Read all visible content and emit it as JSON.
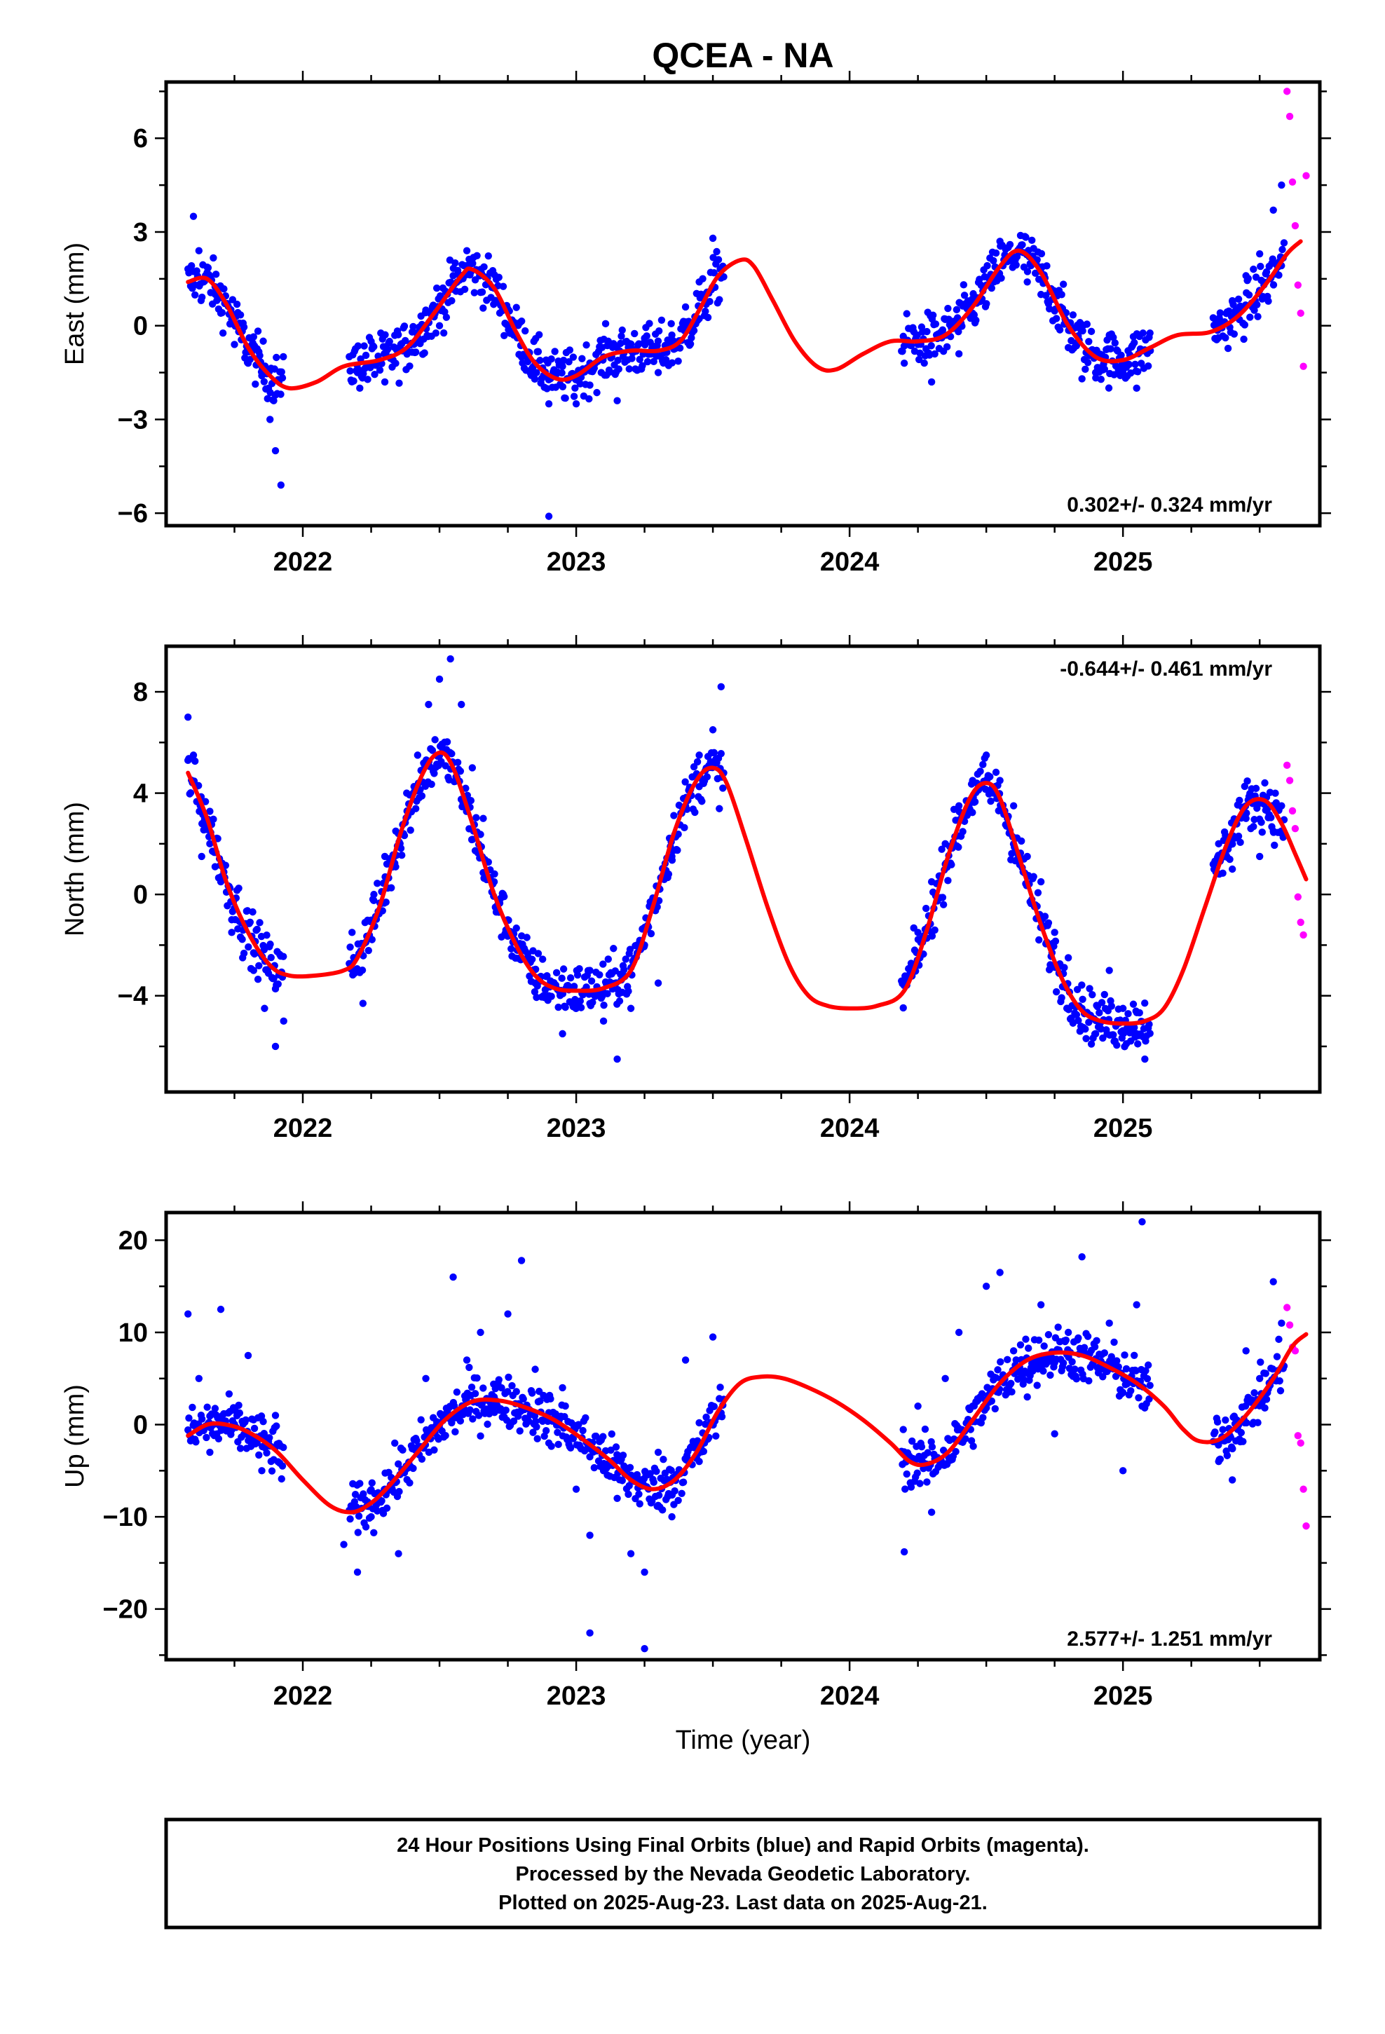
{
  "chart_data": {
    "title": "QCEA - NA",
    "xlabel": "Time (year)",
    "xlim": [
      2021.5,
      2025.72
    ],
    "x_ticks": [
      "2022",
      "2023",
      "2024",
      "2025"
    ],
    "colors": {
      "final_orbits": "#0000ff",
      "rapid_orbits": "#ff00ff",
      "model_fit": "#ff0000"
    },
    "panels": [
      {
        "type": "scatter",
        "name": "east",
        "ylabel": "East (mm)",
        "ylim": [
          -6.4,
          7.8
        ],
        "y_ticks": [
          "6",
          "3",
          "0",
          "−3",
          "−6"
        ],
        "y_tick_values": [
          6,
          3,
          0,
          -3,
          -6
        ],
        "rate": "0.302+/- 0.324 mm/yr",
        "rate_pos": "bottom-right",
        "model_fit": {
          "x": [
            2021.58,
            2021.65,
            2021.72,
            2021.8,
            2021.88,
            2021.95,
            2022.05,
            2022.15,
            2022.28,
            2022.38,
            2022.48,
            2022.58,
            2022.62,
            2022.7,
            2022.78,
            2022.85,
            2022.93,
            2023.0,
            2023.1,
            2023.2,
            2023.3,
            2023.38,
            2023.45,
            2023.52,
            2023.6,
            2023.65,
            2023.72,
            2023.8,
            2023.88,
            2023.95,
            2024.05,
            2024.15,
            2024.25,
            2024.35,
            2024.45,
            2024.55,
            2024.62,
            2024.7,
            2024.8,
            2024.9,
            2025.0,
            2025.1,
            2025.2,
            2025.32,
            2025.42,
            2025.52,
            2025.6,
            2025.65
          ],
          "y": [
            1.4,
            1.5,
            0.7,
            -0.7,
            -1.6,
            -2.0,
            -1.8,
            -1.3,
            -1.1,
            -0.7,
            0.4,
            1.6,
            1.8,
            1.2,
            -0.2,
            -1.2,
            -1.7,
            -1.6,
            -1.0,
            -0.8,
            -0.8,
            -0.5,
            0.5,
            1.6,
            2.1,
            1.9,
            0.8,
            -0.5,
            -1.3,
            -1.4,
            -0.9,
            -0.5,
            -0.5,
            -0.3,
            0.6,
            1.9,
            2.4,
            1.7,
            0.0,
            -1.0,
            -1.1,
            -0.7,
            -0.3,
            -0.2,
            0.3,
            1.3,
            2.3,
            2.7
          ]
        },
        "final_samples": {
          "x": [
            2021.6,
            2021.62,
            2021.65,
            2021.68,
            2021.7,
            2021.75,
            2021.8,
            2021.85,
            2021.88,
            2021.9,
            2021.92,
            2022.2,
            2022.25,
            2022.3,
            2022.4,
            2022.45,
            2022.5,
            2022.55,
            2022.6,
            2022.65,
            2022.7,
            2022.75,
            2022.8,
            2022.85,
            2022.9,
            2022.95,
            2023.0,
            2023.05,
            2023.1,
            2023.15,
            2023.2,
            2023.25,
            2023.3,
            2023.35,
            2023.4,
            2023.45,
            2023.5,
            2024.2,
            2024.25,
            2024.3,
            2024.35,
            2024.4,
            2024.45,
            2024.5,
            2024.55,
            2024.6,
            2024.65,
            2024.7,
            2024.75,
            2024.8,
            2024.85,
            2024.9,
            2024.95,
            2025.0,
            2025.05,
            2025.1,
            2025.35,
            2025.4,
            2025.45,
            2025.5,
            2025.55,
            2025.58
          ],
          "y": [
            3.5,
            2.4,
            1.7,
            1.0,
            0.4,
            -0.6,
            -1.2,
            -1.6,
            -3.0,
            -4.0,
            -5.1,
            -1.5,
            -0.5,
            -1.8,
            -0.2,
            0.5,
            0.0,
            1.6,
            2.4,
            1.8,
            1.2,
            0.0,
            -1.0,
            -1.2,
            -2.5,
            -1.3,
            -2.5,
            -1.9,
            -1.0,
            -2.4,
            -0.8,
            -0.4,
            -1.5,
            -0.3,
            0.6,
            1.4,
            2.8,
            -1.2,
            -0.6,
            -1.8,
            0.2,
            -0.9,
            0.4,
            1.3,
            2.7,
            2.0,
            1.4,
            1.0,
            0.5,
            -0.7,
            -1.7,
            -1.5,
            -0.3,
            -1.5,
            -2.0,
            -0.8,
            0.0,
            0.8,
            1.6,
            2.3,
            3.7,
            4.5
          ]
        },
        "outliers": {
          "x": [
            2022.9
          ],
          "y": [
            -6.1
          ]
        },
        "rapid_samples": {
          "x": [
            2025.6,
            2025.61,
            2025.62,
            2025.63,
            2025.64,
            2025.65,
            2025.66,
            2025.67
          ],
          "y": [
            7.5,
            6.7,
            4.6,
            3.2,
            1.3,
            0.4,
            -1.3,
            4.8
          ]
        }
      },
      {
        "type": "scatter",
        "name": "north",
        "ylabel": "North (mm)",
        "ylim": [
          -7.8,
          9.8
        ],
        "y_ticks": [
          "8",
          "4",
          "0",
          "−4"
        ],
        "y_tick_values": [
          8,
          4,
          0,
          -4
        ],
        "rate": "-0.644+/- 0.461 mm/yr",
        "rate_pos": "top-right",
        "model_fit": {
          "x": [
            2021.58,
            2021.65,
            2021.72,
            2021.8,
            2021.88,
            2021.95,
            2022.05,
            2022.15,
            2022.2,
            2022.28,
            2022.36,
            2022.44,
            2022.5,
            2022.55,
            2022.62,
            2022.7,
            2022.78,
            2022.85,
            2022.92,
            2023.0,
            2023.1,
            2023.2,
            2023.28,
            2023.36,
            2023.44,
            2023.5,
            2023.55,
            2023.62,
            2023.7,
            2023.78,
            2023.85,
            2023.92,
            2024.0,
            2024.1,
            2024.2,
            2024.28,
            2024.36,
            2024.44,
            2024.5,
            2024.55,
            2024.62,
            2024.7,
            2024.78,
            2024.85,
            2024.92,
            2025.0,
            2025.08,
            2025.15,
            2025.22,
            2025.3,
            2025.38,
            2025.45,
            2025.52,
            2025.58,
            2025.63,
            2025.67
          ],
          "y": [
            4.8,
            3.0,
            0.5,
            -1.5,
            -2.8,
            -3.2,
            -3.2,
            -3.0,
            -2.5,
            -0.5,
            2.5,
            4.8,
            5.6,
            5.0,
            2.8,
            0.0,
            -2.0,
            -3.2,
            -3.7,
            -3.8,
            -3.7,
            -3.0,
            -0.5,
            2.5,
            4.5,
            5.0,
            4.4,
            2.2,
            -0.5,
            -2.8,
            -4.0,
            -4.4,
            -4.5,
            -4.4,
            -3.8,
            -1.5,
            1.5,
            3.8,
            4.4,
            3.8,
            1.5,
            -1.2,
            -3.4,
            -4.6,
            -5.0,
            -5.1,
            -5.0,
            -4.5,
            -3.0,
            -0.5,
            2.0,
            3.5,
            3.7,
            2.8,
            1.6,
            0.6
          ]
        },
        "final_samples": {
          "x": [
            2021.58,
            2021.6,
            2021.63,
            2021.66,
            2021.7,
            2021.74,
            2021.78,
            2021.82,
            2021.86,
            2021.9,
            2021.93,
            2022.18,
            2022.22,
            2022.26,
            2022.3,
            2022.34,
            2022.38,
            2022.42,
            2022.46,
            2022.5,
            2022.54,
            2022.58,
            2022.62,
            2022.66,
            2022.7,
            2022.75,
            2022.8,
            2022.85,
            2022.9,
            2022.95,
            2023.0,
            2023.05,
            2023.1,
            2023.15,
            2023.2,
            2023.25,
            2023.3,
            2023.35,
            2023.4,
            2023.45,
            2023.5,
            2023.53,
            2024.2,
            2024.25,
            2024.3,
            2024.35,
            2024.4,
            2024.45,
            2024.5,
            2024.55,
            2024.6,
            2024.65,
            2024.7,
            2024.75,
            2024.8,
            2024.85,
            2024.9,
            2024.95,
            2025.0,
            2025.05,
            2025.08,
            2025.35,
            2025.4,
            2025.45,
            2025.5,
            2025.55,
            2025.58
          ],
          "y": [
            7.0,
            5.5,
            1.5,
            2.0,
            0.5,
            -1.5,
            -2.5,
            -3.0,
            -4.5,
            -6.0,
            -5.0,
            -1.5,
            -4.3,
            0.0,
            1.5,
            2.5,
            4.0,
            5.5,
            7.5,
            8.5,
            9.3,
            7.5,
            5.0,
            3.0,
            0.5,
            -1.0,
            -2.5,
            -3.5,
            -4.0,
            -5.5,
            -4.5,
            -3.0,
            -5.0,
            -6.5,
            -4.5,
            -2.0,
            -3.5,
            1.5,
            3.5,
            5.5,
            6.5,
            8.2,
            -3.5,
            -1.5,
            0.5,
            2.0,
            3.5,
            4.5,
            5.5,
            4.5,
            3.5,
            1.5,
            0.5,
            -1.5,
            -2.5,
            -4.5,
            -5.5,
            -3.0,
            -4.5,
            -5.5,
            -6.5,
            2.0,
            1.0,
            3.0,
            1.5,
            2.5,
            3.5
          ],
          "note_max": 9.5
        },
        "rapid_samples": {
          "x": [
            2025.6,
            2025.61,
            2025.62,
            2025.63,
            2025.64,
            2025.65,
            2025.66
          ],
          "y": [
            5.1,
            4.5,
            3.3,
            2.6,
            -0.1,
            -1.1,
            -1.6
          ]
        }
      },
      {
        "type": "scatter",
        "name": "up",
        "ylabel": "Up (mm)",
        "xlabel": "Time (year)",
        "ylim": [
          -25.5,
          23
        ],
        "y_ticks": [
          "20",
          "10",
          "0",
          "−10",
          "−20"
        ],
        "y_tick_values": [
          20,
          10,
          0,
          -10,
          -20
        ],
        "rate": "2.577+/- 1.251 mm/yr",
        "rate_pos": "bottom-right",
        "model_fit": {
          "x": [
            2021.58,
            2021.65,
            2021.72,
            2021.8,
            2021.9,
            2022.0,
            2022.1,
            2022.18,
            2022.25,
            2022.32,
            2022.42,
            2022.52,
            2022.62,
            2022.72,
            2022.82,
            2022.92,
            2023.02,
            2023.12,
            2023.2,
            2023.28,
            2023.36,
            2023.44,
            2023.52,
            2023.6,
            2023.68,
            2023.76,
            2023.85,
            2023.95,
            2024.05,
            2024.15,
            2024.22,
            2024.28,
            2024.36,
            2024.45,
            2024.55,
            2024.65,
            2024.75,
            2024.85,
            2024.95,
            2025.05,
            2025.15,
            2025.22,
            2025.28,
            2025.36,
            2025.45,
            2025.55,
            2025.62,
            2025.67
          ],
          "y": [
            -1.2,
            0.0,
            0.0,
            -0.8,
            -2.8,
            -6.0,
            -8.8,
            -9.5,
            -8.5,
            -6.5,
            -3.0,
            0.5,
            2.5,
            2.6,
            1.8,
            0.5,
            -1.5,
            -3.8,
            -6.0,
            -7.0,
            -6.0,
            -3.0,
            1.5,
            4.5,
            5.2,
            5.0,
            4.0,
            2.5,
            0.5,
            -2.0,
            -4.0,
            -4.3,
            -3.0,
            0.5,
            4.5,
            7.0,
            7.8,
            7.5,
            6.2,
            4.5,
            2.0,
            -0.5,
            -1.8,
            -1.5,
            1.0,
            5.0,
            8.5,
            9.8
          ]
        },
        "final_samples": {
          "x": [
            2021.58,
            2021.62,
            2021.66,
            2021.7,
            2021.75,
            2021.8,
            2021.85,
            2021.9,
            2022.15,
            2022.2,
            2022.25,
            2022.3,
            2022.35,
            2022.45,
            2022.5,
            2022.55,
            2022.6,
            2022.65,
            2022.7,
            2022.75,
            2022.8,
            2022.85,
            2022.9,
            2022.95,
            2023.0,
            2023.05,
            2023.1,
            2023.15,
            2023.2,
            2023.25,
            2023.3,
            2023.35,
            2023.4,
            2023.45,
            2023.5,
            2024.2,
            2024.25,
            2024.3,
            2024.35,
            2024.4,
            2024.45,
            2024.5,
            2024.55,
            2024.6,
            2024.65,
            2024.7,
            2024.75,
            2024.8,
            2024.85,
            2024.9,
            2024.95,
            2025.0,
            2025.05,
            2025.35,
            2025.4,
            2025.45,
            2025.5,
            2025.55,
            2025.58
          ],
          "y": [
            12.0,
            5.0,
            -3.0,
            12.5,
            0.0,
            7.5,
            -5.0,
            1.0,
            -13.0,
            -16.0,
            -10.0,
            -7.0,
            -14.0,
            5.0,
            0.0,
            16.0,
            7.0,
            10.0,
            3.0,
            12.0,
            17.8,
            6.0,
            -2.0,
            4.0,
            -7.0,
            -12.0,
            -5.0,
            -8.0,
            -14.0,
            -16.0,
            -3.0,
            -10.0,
            7.0,
            -4.0,
            9.5,
            -13.8,
            2.0,
            -9.5,
            5.0,
            10.0,
            2.0,
            15.0,
            16.5,
            8.0,
            3.0,
            13.0,
            -1.0,
            10.0,
            18.2,
            7.0,
            11.0,
            -5.0,
            13.0,
            -4.0,
            -6.0,
            8.0,
            5.0,
            15.5,
            11.0
          ],
          "note_max": 22
        },
        "outliers": {
          "x": [
            2023.05,
            2023.25,
            2025.07
          ],
          "y": [
            -22.6,
            -24.3,
            22.0
          ]
        },
        "rapid_samples": {
          "x": [
            2025.6,
            2025.61,
            2025.62,
            2025.63,
            2025.64,
            2025.65,
            2025.66,
            2025.67
          ],
          "y": [
            12.7,
            10.8,
            8.4,
            8.0,
            -1.2,
            -2.0,
            -7.0,
            -11.0
          ]
        }
      }
    ]
  },
  "footer": {
    "line1": "24 Hour Positions Using Final Orbits (blue) and Rapid Orbits (magenta).",
    "line2": "Processed by the Nevada Geodetic Laboratory.",
    "line3": "Plotted on 2025-Aug-23. Last data on 2025-Aug-21."
  }
}
